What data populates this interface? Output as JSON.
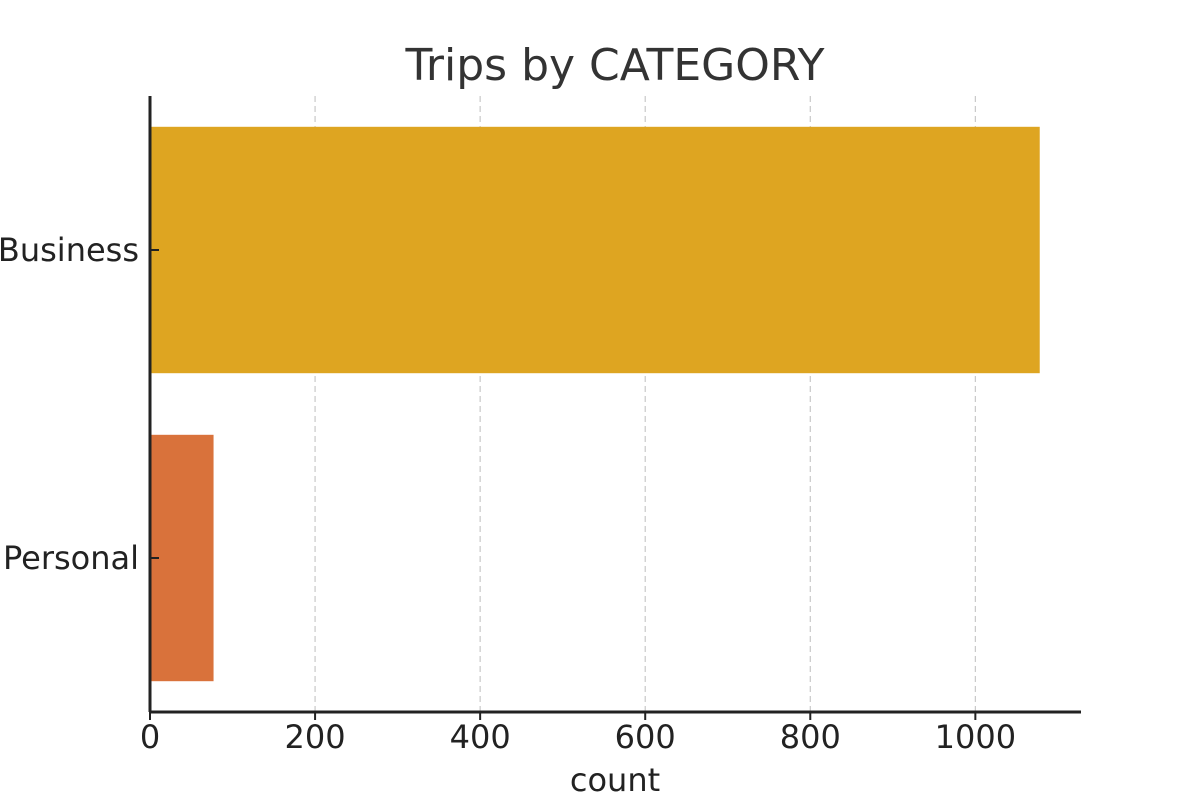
{
  "chart_data": {
    "type": "bar",
    "orientation": "horizontal",
    "title": "Trips by CATEGORY",
    "xlabel": "count",
    "ylabel": "",
    "categories": [
      "Business",
      "Personal"
    ],
    "values": [
      1078,
      77
    ],
    "colors": [
      "#DEA521",
      "#D9723B"
    ],
    "xlim": [
      0,
      1128
    ],
    "xticks": [
      "0",
      "200",
      "400",
      "600",
      "800",
      "1000"
    ],
    "grid": "vertical dashed",
    "legend": "none"
  }
}
